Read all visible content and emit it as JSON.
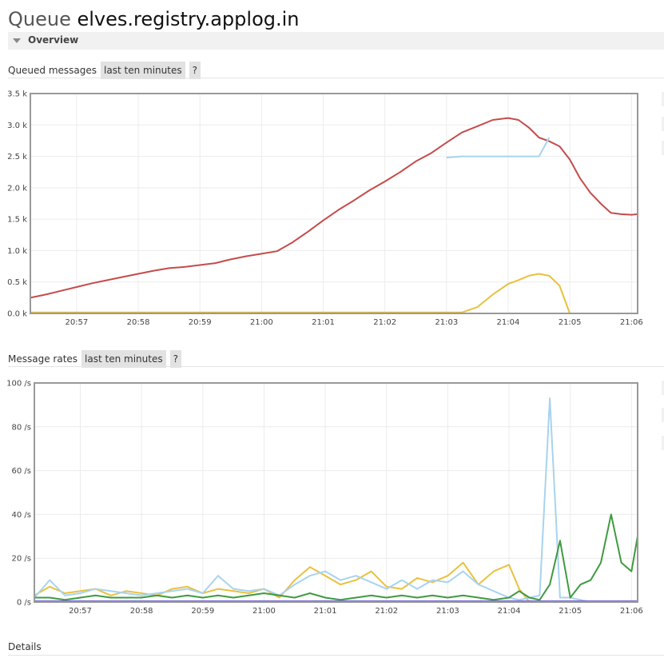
{
  "title": {
    "prefix": "Queue",
    "name": "elves.registry.applog.in"
  },
  "overview": {
    "label": "Overview"
  },
  "colors": {
    "red": "#c54b4b",
    "yellow": "#e9c13e",
    "lightblue": "#a8d3ef",
    "green": "#3f9a3f",
    "purple": "#7a6fcf"
  },
  "queued": {
    "heading": "Queued messages",
    "range_label": "last ten minutes",
    "help_label": "?"
  },
  "rates": {
    "heading": "Message rates",
    "range_label": "last ten minutes",
    "help_label": "?"
  },
  "details": {
    "label": "Details"
  },
  "chart_data": [
    {
      "type": "line",
      "title": "Queued messages",
      "xlabel": "",
      "ylabel": "",
      "ylim": [
        0,
        3500
      ],
      "x": [
        "20:56:15",
        "20:56:30",
        "20:56:45",
        "20:57:00",
        "20:57:15",
        "20:57:30",
        "20:57:45",
        "20:58:00",
        "20:58:15",
        "20:58:30",
        "20:58:45",
        "20:59:00",
        "20:59:15",
        "20:59:30",
        "20:59:45",
        "21:00:00",
        "21:00:15",
        "21:00:30",
        "21:00:45",
        "21:01:00",
        "21:01:15",
        "21:01:30",
        "21:01:45",
        "21:02:00",
        "21:02:15",
        "21:02:30",
        "21:02:45",
        "21:03:00",
        "21:03:15",
        "21:03:30",
        "21:03:45",
        "21:04:00",
        "21:04:10",
        "21:04:20",
        "21:04:30",
        "21:04:40",
        "21:04:50",
        "21:05:00",
        "21:05:10",
        "21:05:20",
        "21:05:30",
        "21:05:40",
        "21:05:50",
        "21:06:00",
        "21:06:06"
      ],
      "y_ticks": [
        "0.0 k",
        "0.5 k",
        "1.0 k",
        "1.5 k",
        "2.0 k",
        "2.5 k",
        "3.0 k",
        "3.5 k"
      ],
      "x_ticks": [
        "20:57",
        "20:58",
        "20:59",
        "21:00",
        "21:01",
        "21:02",
        "21:03",
        "21:04",
        "21:05",
        "21:06"
      ],
      "x_tick_values": [
        "20:57:00",
        "20:58:00",
        "20:59:00",
        "21:00:00",
        "21:01:00",
        "21:02:00",
        "21:03:00",
        "21:04:00",
        "21:05:00",
        "21:06:00"
      ],
      "grid": true,
      "series": [
        {
          "color": "#c54b4b",
          "values": [
            250,
            300,
            360,
            420,
            480,
            530,
            580,
            630,
            680,
            720,
            740,
            770,
            800,
            860,
            910,
            950,
            990,
            1130,
            1300,
            1480,
            1650,
            1800,
            1960,
            2100,
            2250,
            2420,
            2550,
            2720,
            2880,
            2980,
            3080,
            3110,
            3080,
            2960,
            2800,
            2740,
            2660,
            2450,
            2150,
            1920,
            1750,
            1600,
            1580,
            1570,
            1580
          ]
        },
        {
          "color": "#a8d3ef",
          "values": [
            null,
            null,
            null,
            null,
            null,
            null,
            null,
            null,
            null,
            null,
            null,
            null,
            null,
            null,
            null,
            null,
            null,
            null,
            null,
            null,
            null,
            null,
            null,
            null,
            null,
            null,
            null,
            2480,
            2500,
            2500,
            2500,
            2500,
            2500,
            2500,
            2500,
            2800,
            null,
            null,
            null,
            null,
            null,
            null,
            null,
            null,
            null
          ]
        },
        {
          "color": "#e9c13e",
          "values": [
            15,
            15,
            15,
            15,
            15,
            15,
            15,
            15,
            15,
            15,
            15,
            15,
            15,
            15,
            15,
            15,
            15,
            15,
            15,
            15,
            15,
            15,
            15,
            15,
            15,
            15,
            15,
            15,
            15,
            100,
            300,
            470,
            530,
            600,
            630,
            600,
            440,
            0,
            0,
            0,
            0,
            0,
            0,
            0,
            0
          ]
        }
      ]
    },
    {
      "type": "line",
      "title": "Message rates",
      "xlabel": "",
      "ylabel": "",
      "ylim": [
        0,
        100
      ],
      "x": [
        "20:56:15",
        "20:56:30",
        "20:56:45",
        "20:57:00",
        "20:57:15",
        "20:57:30",
        "20:57:45",
        "20:58:00",
        "20:58:15",
        "20:58:30",
        "20:58:45",
        "20:59:00",
        "20:59:15",
        "20:59:30",
        "20:59:45",
        "21:00:00",
        "21:00:15",
        "21:00:30",
        "21:00:45",
        "21:01:00",
        "21:01:15",
        "21:01:30",
        "21:01:45",
        "21:02:00",
        "21:02:15",
        "21:02:30",
        "21:02:45",
        "21:03:00",
        "21:03:15",
        "21:03:30",
        "21:03:45",
        "21:04:00",
        "21:04:10",
        "21:04:20",
        "21:04:30",
        "21:04:40",
        "21:04:50",
        "21:05:00",
        "21:05:10",
        "21:05:20",
        "21:05:30",
        "21:05:40",
        "21:05:50",
        "21:06:00",
        "21:06:06"
      ],
      "y_ticks": [
        "0 /s",
        "20 /s",
        "40 /s",
        "60 /s",
        "80 /s",
        "100 /s"
      ],
      "x_ticks": [
        "20:57",
        "20:58",
        "20:59",
        "21:00",
        "21:01",
        "21:02",
        "21:03",
        "21:04",
        "21:05",
        "21:06"
      ],
      "x_tick_values": [
        "20:57:00",
        "20:58:00",
        "20:59:00",
        "21:00:00",
        "21:01:00",
        "21:02:00",
        "21:03:00",
        "21:04:00",
        "21:05:00",
        "21:06:00"
      ],
      "grid": true,
      "series": [
        {
          "color": "#e9c13e",
          "values": [
            3,
            7,
            4,
            5,
            6,
            3,
            5,
            4,
            3,
            6,
            7,
            4,
            6,
            5,
            4,
            6,
            2,
            10,
            16,
            12,
            8,
            10,
            14,
            7,
            6,
            11,
            9,
            12,
            18,
            8,
            14,
            17,
            6,
            0,
            0,
            0,
            0,
            0,
            0,
            0,
            0,
            0,
            0,
            0,
            0
          ]
        },
        {
          "color": "#a8d3ef",
          "values": [
            2,
            10,
            3,
            4,
            6,
            5,
            4,
            3,
            4,
            5,
            6,
            4,
            12,
            6,
            5,
            6,
            3,
            8,
            12,
            14,
            10,
            12,
            9,
            6,
            10,
            6,
            10,
            9,
            14,
            8,
            5,
            2,
            1,
            2,
            3,
            93,
            2,
            2,
            1,
            0,
            0,
            0,
            0,
            0,
            0
          ]
        },
        {
          "color": "#3f9a3f",
          "values": [
            2,
            2,
            1,
            2,
            3,
            2,
            2,
            2,
            3,
            2,
            3,
            2,
            3,
            2,
            3,
            4,
            3,
            2,
            4,
            2,
            1,
            2,
            3,
            2,
            3,
            2,
            3,
            2,
            3,
            2,
            1,
            2,
            5,
            2,
            1,
            8,
            28,
            2,
            8,
            10,
            18,
            40,
            18,
            14,
            30
          ]
        },
        {
          "color": "#7a6fcf",
          "values": [
            0.4,
            0.4,
            0.4,
            0.4,
            0.4,
            0.4,
            0.4,
            0.4,
            0.4,
            0.4,
            0.4,
            0.4,
            0.4,
            0.4,
            0.4,
            0.4,
            0.4,
            0.4,
            0.4,
            0.4,
            0.4,
            0.4,
            0.4,
            0.4,
            0.4,
            0.4,
            0.4,
            0.4,
            0.4,
            0.4,
            0.4,
            0.4,
            0.4,
            0.4,
            0.4,
            0.4,
            0.4,
            0.4,
            0.4,
            0.4,
            0.4,
            0.4,
            0.4,
            0.4,
            0.4
          ]
        }
      ]
    }
  ]
}
